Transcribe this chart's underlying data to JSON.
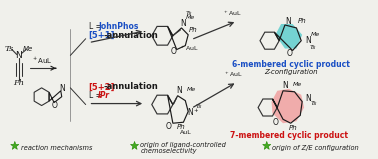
{
  "bg_color": "#f0f0eb",
  "fig_width": 3.78,
  "fig_height": 1.59,
  "dpi": 100,
  "top_label": "L = JohnPhos",
  "top_annulation": "[5+1]-annulation",
  "bottom_annulation": "[5+2]-annulation",
  "bottom_label": "L = IPr",
  "product_top_label": "6-membered cyclic product",
  "product_top_config": "Z-configuration",
  "product_bottom_label": "7-membered cyclic product",
  "footer_items": [
    "reaction mechanisms",
    "origin of ligand-controlled\nchemoselectivity",
    "origin of Z/E configuration"
  ],
  "color_blue": "#1a4fc4",
  "color_red": "#cc1111",
  "color_black": "#1a1a1a",
  "color_cyan": "#40c8c8",
  "color_pink": "#f09090",
  "star_color": "#44aa22",
  "arrow_color": "#333333"
}
